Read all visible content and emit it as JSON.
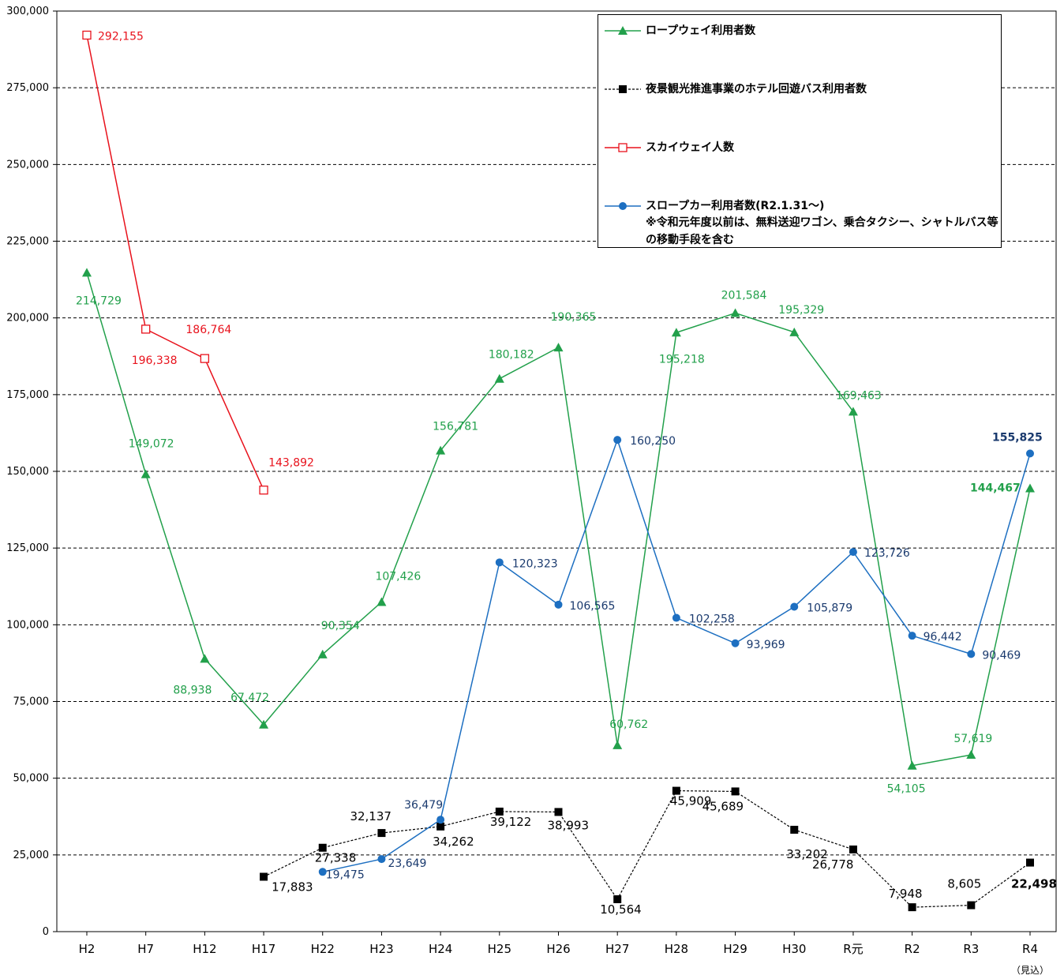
{
  "chart_data": {
    "type": "line",
    "categories": [
      "H2",
      "H7",
      "H12",
      "H17",
      "H22",
      "H23",
      "H24",
      "H25",
      "H26",
      "H27",
      "H28",
      "H29",
      "H30",
      "R元",
      "R2",
      "R3",
      "R4"
    ],
    "category_note": "（見込）",
    "ylim": [
      0,
      300000
    ],
    "yticks": [
      0,
      25000,
      50000,
      75000,
      100000,
      125000,
      150000,
      175000,
      200000,
      225000,
      250000,
      275000,
      300000
    ],
    "ytick_labels": [
      "0",
      "25,000",
      "50,000",
      "75,000",
      "100,000",
      "125,000",
      "150,000",
      "175,000",
      "200,000",
      "225,000",
      "250,000",
      "275,000",
      "300,000"
    ],
    "grid": "horizontal-dashed",
    "legend_position": "top-right",
    "series": [
      {
        "key": "ropeway",
        "name": "ロープウェイ利用者数",
        "color": "#22a04b",
        "marker": "triangle",
        "line": "solid",
        "values": [
          214729,
          149072,
          88938,
          67472,
          90354,
          107426,
          156781,
          180182,
          190365,
          60762,
          195218,
          201584,
          195329,
          169463,
          54105,
          57619,
          144467
        ],
        "labels": [
          "214,729",
          "149,072",
          "88,938",
          "67,472",
          "90,354",
          "107,426",
          "156,781",
          "180,182",
          "190,365",
          "60,762",
          "195,218",
          "201,584",
          "195,329",
          "169,463",
          "54,105",
          "57,619",
          "144,467"
        ]
      },
      {
        "key": "hotelbus",
        "name": "夜景観光推進事業のホテル回遊バス利用者数",
        "color": "#000000",
        "marker": "square",
        "line": "dashed",
        "values": [
          null,
          null,
          null,
          17883,
          27338,
          32137,
          34262,
          39122,
          38993,
          10564,
          45909,
          45689,
          33202,
          26778,
          7948,
          8605,
          22498
        ],
        "labels": [
          null,
          null,
          null,
          "17,883",
          "27,338",
          "32,137",
          "34,262",
          "39,122",
          "38,993",
          "10,564",
          "45,909",
          "45,689",
          "33,202",
          "26,778",
          "7,948",
          "8,605",
          "22,498"
        ]
      },
      {
        "key": "skyway",
        "name": "スカイウェイ人数",
        "color": "#e8121c",
        "marker": "square-open",
        "line": "solid",
        "values": [
          292155,
          196338,
          186764,
          143892,
          null,
          null,
          null,
          null,
          null,
          null,
          null,
          null,
          null,
          null,
          null,
          null,
          null
        ],
        "labels": [
          "292,155",
          "196,338",
          "186,764",
          "143,892",
          null,
          null,
          null,
          null,
          null,
          null,
          null,
          null,
          null,
          null,
          null,
          null,
          null
        ]
      },
      {
        "key": "slopecar",
        "name": "スロープカー利用者数(R2.1.31～)",
        "note": "※令和元年度以前は、無料送迎ワゴン、乗合タクシー、シャトルバス等の移動手段を含む",
        "color": "#1d6fc1",
        "label_color": "#1a3a6e",
        "marker": "circle",
        "line": "solid",
        "values": [
          null,
          null,
          null,
          null,
          19475,
          23649,
          36479,
          120323,
          106565,
          160250,
          102258,
          93969,
          105879,
          123726,
          96442,
          90469,
          155825
        ],
        "labels": [
          null,
          null,
          null,
          null,
          "19,475",
          "23,649",
          "36,479",
          "120,323",
          "106,565",
          "160,250",
          "102,258",
          "93,969",
          "105,879",
          "123,726",
          "96,442",
          "90,469",
          "155,825"
        ]
      }
    ]
  }
}
